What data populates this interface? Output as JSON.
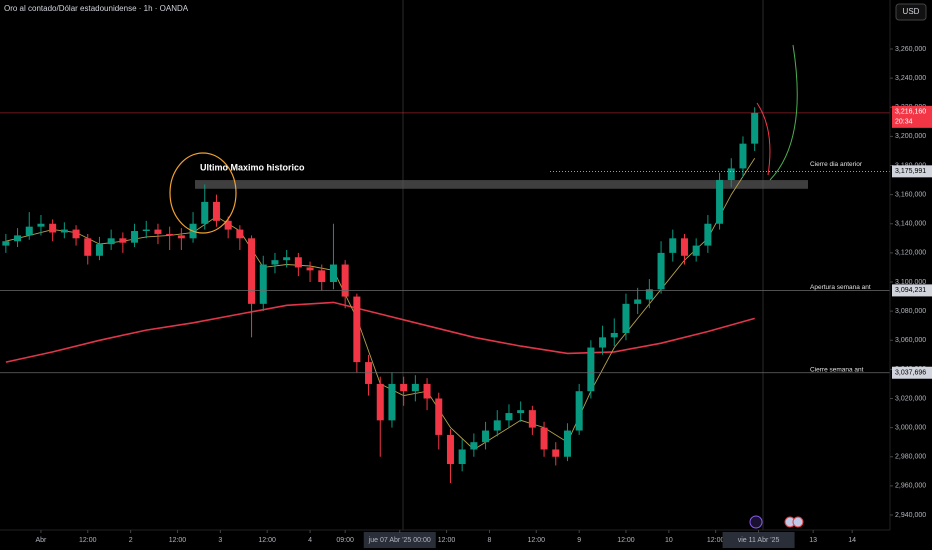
{
  "chart_data": {
    "type": "candlestick",
    "title": "Oro al contado/Dólar estadounidense · 1h · OANDA",
    "currency": "USD",
    "up_color": "#089981",
    "down_color": "#f23645",
    "x": [
      -9,
      -6,
      -3,
      0,
      3,
      6,
      9,
      12,
      15,
      18,
      21,
      24,
      27,
      30,
      33,
      36,
      39,
      42,
      45,
      48,
      51,
      54,
      57,
      60,
      63,
      66,
      69,
      72,
      75,
      78,
      81,
      84,
      87,
      90,
      93,
      96,
      99,
      102,
      105,
      108,
      111,
      114,
      117,
      120,
      123,
      126,
      129,
      132,
      135,
      138,
      141,
      144,
      147,
      150,
      153,
      156,
      159,
      162,
      165,
      168,
      171,
      174,
      177,
      180,
      183
    ],
    "open": [
      3125,
      3128,
      3132,
      3138,
      3140,
      3134,
      3136,
      3130,
      3118,
      3126,
      3130,
      3127,
      3135,
      3136,
      3133,
      3132,
      3130,
      3140,
      3155,
      3142,
      3136,
      3130,
      3085,
      3112,
      3115,
      3117,
      3110,
      3108,
      3100,
      3112,
      3090,
      3045,
      3030,
      3005,
      3030,
      3025,
      3030,
      3020,
      2995,
      2975,
      2985,
      2990,
      2998,
      3005,
      3010,
      3012,
      3000,
      2985,
      2980,
      2998,
      3025,
      3055,
      3062,
      3065,
      3085,
      3088,
      3095,
      3120,
      3130,
      3118,
      3125,
      3140,
      3170,
      3178,
      3195
    ],
    "high": [
      3133,
      3137,
      3148,
      3146,
      3143,
      3141,
      3139,
      3133,
      3131,
      3136,
      3134,
      3140,
      3142,
      3140,
      3138,
      3137,
      3148,
      3167,
      3160,
      3145,
      3139,
      3132,
      3118,
      3120,
      3122,
      3120,
      3114,
      3112,
      3140,
      3115,
      3092,
      3050,
      3035,
      3038,
      3035,
      3036,
      3034,
      3024,
      2999,
      2992,
      2996,
      3004,
      3012,
      3016,
      3018,
      3015,
      3004,
      2990,
      3003,
      3030,
      3060,
      3070,
      3075,
      3092,
      3096,
      3102,
      3128,
      3136,
      3133,
      3130,
      3146,
      3175,
      3185,
      3200,
      3220
    ],
    "low": [
      3120,
      3124,
      3129,
      3132,
      3128,
      3130,
      3125,
      3112,
      3115,
      3122,
      3120,
      3124,
      3130,
      3126,
      3122,
      3122,
      3127,
      3136,
      3138,
      3130,
      3122,
      3062,
      3080,
      3106,
      3110,
      3104,
      3100,
      3094,
      3095,
      3082,
      3038,
      3022,
      2980,
      3000,
      3015,
      3018,
      3012,
      2985,
      2962,
      2970,
      2980,
      2985,
      2994,
      3000,
      3004,
      2995,
      2980,
      2974,
      2977,
      2995,
      3020,
      3050,
      3056,
      3060,
      3078,
      3082,
      3092,
      3114,
      3112,
      3114,
      3120,
      3136,
      3165,
      3172,
      3190
    ],
    "close": [
      3128,
      3132,
      3138,
      3140,
      3134,
      3136,
      3130,
      3118,
      3126,
      3130,
      3127,
      3135,
      3136,
      3133,
      3132,
      3130,
      3140,
      3155,
      3142,
      3136,
      3130,
      3085,
      3112,
      3115,
      3117,
      3110,
      3108,
      3100,
      3112,
      3090,
      3045,
      3030,
      3005,
      3030,
      3025,
      3030,
      3020,
      2995,
      2975,
      2985,
      2990,
      2998,
      3005,
      3010,
      3012,
      3000,
      2985,
      2980,
      2998,
      3025,
      3055,
      3062,
      3065,
      3085,
      3088,
      3095,
      3120,
      3130,
      3118,
      3125,
      3140,
      3170,
      3178,
      3195,
      3216.16
    ],
    "lines": [
      {
        "color": "#e0364a",
        "width": 1.6,
        "x": [
          -9,
          3,
          15,
          27,
          39,
          51,
          63,
          75,
          87,
          99,
          111,
          123,
          135,
          147,
          159,
          171,
          183
        ],
        "values": [
          3045,
          3052,
          3060,
          3067,
          3072,
          3078,
          3084,
          3086,
          3078,
          3070,
          3062,
          3056,
          3051,
          3052,
          3058,
          3066,
          3075
        ]
      },
      {
        "color": "#b5a04a",
        "width": 0.9,
        "x": [
          -9,
          -3,
          3,
          9,
          15,
          21,
          27,
          33,
          39,
          45,
          51,
          57,
          63,
          69,
          75,
          81,
          87,
          93,
          99,
          105,
          111,
          117,
          123,
          129,
          135,
          141,
          147,
          153,
          159,
          165,
          171,
          177,
          183
        ],
        "values": [
          3128,
          3132,
          3136,
          3134,
          3126,
          3128,
          3131,
          3132,
          3134,
          3145,
          3135,
          3110,
          3112,
          3111,
          3108,
          3075,
          3030,
          3022,
          3025,
          3000,
          2985,
          2995,
          3005,
          3000,
          2990,
          3025,
          3055,
          3075,
          3095,
          3115,
          3130,
          3160,
          3185
        ]
      }
    ],
    "xlim": [
      -10.5,
      217.7
    ],
    "ylim": [
      2929.7,
      3293.65
    ],
    "yticks": [
      {
        "value": 2940,
        "label": "2,940,000"
      },
      {
        "value": 2960,
        "label": "2,960,000"
      },
      {
        "value": 2980,
        "label": "2,980,000"
      },
      {
        "value": 3000,
        "label": "3,000,000"
      },
      {
        "value": 3020,
        "label": "3,020,000"
      },
      {
        "value": 3040,
        "label": "3,040,000"
      },
      {
        "value": 3060,
        "label": "3,060,000"
      },
      {
        "value": 3080,
        "label": "3,080,000"
      },
      {
        "value": 3100,
        "label": "3,100,000"
      },
      {
        "value": 3120,
        "label": "3,120,000"
      },
      {
        "value": 3140,
        "label": "3,140,000"
      },
      {
        "value": 3160,
        "label": "3,160,000"
      },
      {
        "value": 3180,
        "label": "3,180,000"
      },
      {
        "value": 3200,
        "label": "3,200,000"
      },
      {
        "value": 3220,
        "label": "3,220,000"
      },
      {
        "value": 3240,
        "label": "3,240,000"
      },
      {
        "value": 3260,
        "label": "3,260,000"
      }
    ],
    "xticks": [
      {
        "value": 0,
        "label": "Abr"
      },
      {
        "value": 12,
        "label": "12:00"
      },
      {
        "value": 23,
        "label": "2"
      },
      {
        "value": 35,
        "label": "12:00"
      },
      {
        "value": 46,
        "label": "3"
      },
      {
        "value": 58,
        "label": "12:00"
      },
      {
        "value": 69,
        "label": "4"
      },
      {
        "value": 78,
        "label": "09:00"
      },
      {
        "value": 92,
        "label": "jue 07 Abr '25  00:00",
        "highlight": true
      },
      {
        "value": 104,
        "label": "12:00"
      },
      {
        "value": 115,
        "label": "8"
      },
      {
        "value": 127,
        "label": "12:00"
      },
      {
        "value": 138,
        "label": "9"
      },
      {
        "value": 150,
        "label": "12:00"
      },
      {
        "value": 161,
        "label": "10"
      },
      {
        "value": 173,
        "label": "12:00"
      },
      {
        "value": 184,
        "label": "vie 11 Abr '25",
        "highlight": true
      },
      {
        "value": 198,
        "label": "13"
      },
      {
        "value": 208,
        "label": "14"
      }
    ],
    "levels": [
      {
        "value": 3216.16,
        "label": "3,216,160",
        "countdown": "20:34",
        "color": "#f23645",
        "style": "current"
      },
      {
        "value": 3175.991,
        "label": "3,175,991",
        "note": "Cierre dia anterior",
        "color": "#d0d0d0",
        "style": "dotted"
      },
      {
        "value": 3094.231,
        "label": "3,094,231",
        "note": "Apertura semana ant",
        "color": "#6a6a6a",
        "style": "solid"
      },
      {
        "value": 3037.696,
        "label": "3,037,696",
        "note": "Cierre semana ant",
        "color": "#6a6a6a",
        "style": "solid"
      }
    ],
    "zone": {
      "low": 3164,
      "high": 3170,
      "label": "Ultimo Maximo historico"
    }
  }
}
